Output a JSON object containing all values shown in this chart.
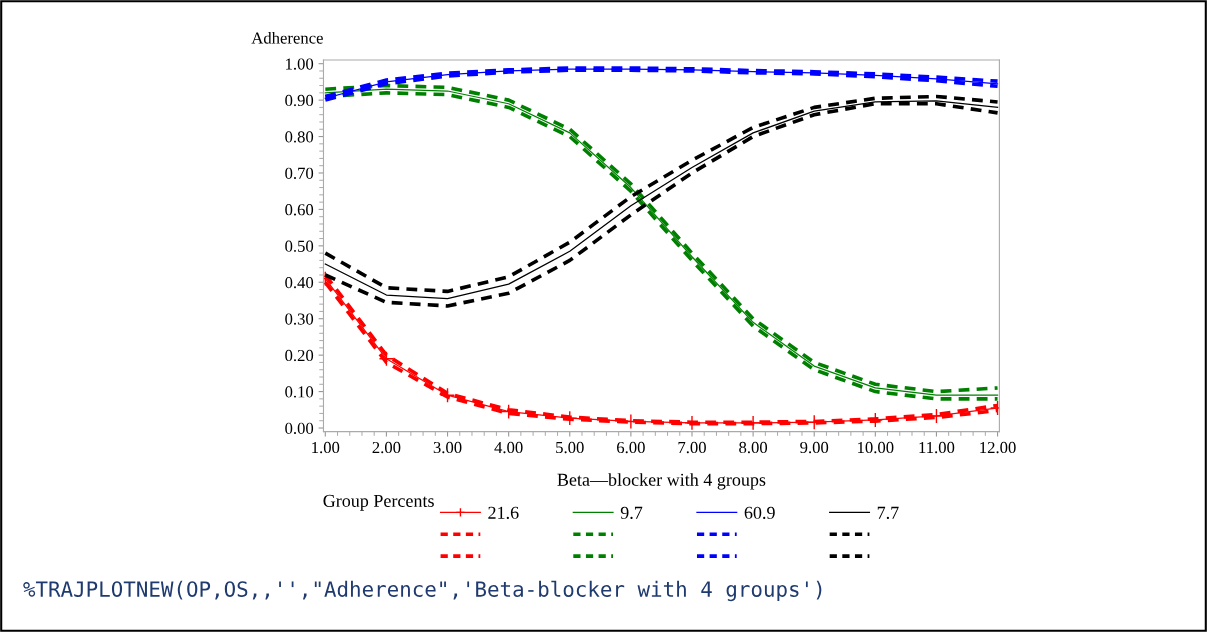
{
  "chart_data": {
    "type": "line",
    "ylabel": "Adherence",
    "xlabel": "Beta—blocker with 4 groups",
    "legend_title": "Group Percents",
    "x": [
      1,
      2,
      3,
      4,
      5,
      6,
      7,
      8,
      9,
      10,
      11,
      12
    ],
    "series": [
      {
        "name": "21.6",
        "color": "#ff0000",
        "marker": "cross",
        "line_style": "solid",
        "values": [
          0.41,
          0.19,
          0.09,
          0.045,
          0.027,
          0.018,
          0.014,
          0.014,
          0.016,
          0.022,
          0.033,
          0.055
        ]
      },
      {
        "color": "#ff0000",
        "line_style": "dashed",
        "values": [
          0.4,
          0.18,
          0.085,
          0.04,
          0.024,
          0.016,
          0.012,
          0.012,
          0.014,
          0.019,
          0.029,
          0.048
        ]
      },
      {
        "color": "#ff0000",
        "line_style": "dashed",
        "values": [
          0.42,
          0.2,
          0.095,
          0.05,
          0.03,
          0.02,
          0.016,
          0.016,
          0.018,
          0.025,
          0.037,
          0.062
        ]
      },
      {
        "name": "9.7",
        "color": "#008000",
        "line_style": "solid",
        "values": [
          0.92,
          0.93,
          0.925,
          0.89,
          0.81,
          0.66,
          0.47,
          0.29,
          0.17,
          0.11,
          0.09,
          0.09
        ]
      },
      {
        "color": "#008000",
        "line_style": "dashed",
        "values": [
          0.91,
          0.92,
          0.915,
          0.88,
          0.8,
          0.65,
          0.46,
          0.28,
          0.16,
          0.1,
          0.08,
          0.08
        ]
      },
      {
        "color": "#008000",
        "line_style": "dashed",
        "values": [
          0.93,
          0.94,
          0.935,
          0.9,
          0.82,
          0.67,
          0.48,
          0.3,
          0.18,
          0.12,
          0.1,
          0.11
        ]
      },
      {
        "name": "60.9",
        "color": "#0000ff",
        "line_style": "solid",
        "values": [
          0.905,
          0.95,
          0.97,
          0.98,
          0.985,
          0.985,
          0.983,
          0.978,
          0.975,
          0.968,
          0.958,
          0.945
        ]
      },
      {
        "color": "#0000ff",
        "line_style": "dashed",
        "values": [
          0.9,
          0.945,
          0.966,
          0.977,
          0.982,
          0.982,
          0.98,
          0.975,
          0.972,
          0.964,
          0.953,
          0.938
        ]
      },
      {
        "color": "#0000ff",
        "line_style": "dashed",
        "values": [
          0.91,
          0.955,
          0.974,
          0.983,
          0.988,
          0.988,
          0.986,
          0.981,
          0.978,
          0.972,
          0.963,
          0.952
        ]
      },
      {
        "name": "7.7",
        "color": "#000000",
        "line_style": "solid",
        "values": [
          0.45,
          0.365,
          0.355,
          0.395,
          0.485,
          0.61,
          0.715,
          0.81,
          0.87,
          0.895,
          0.898,
          0.88
        ]
      },
      {
        "color": "#000000",
        "line_style": "dashed",
        "values": [
          0.42,
          0.345,
          0.335,
          0.37,
          0.46,
          0.585,
          0.7,
          0.8,
          0.86,
          0.89,
          0.89,
          0.865
        ]
      },
      {
        "color": "#000000",
        "line_style": "dashed",
        "values": [
          0.48,
          0.385,
          0.375,
          0.415,
          0.51,
          0.635,
          0.735,
          0.825,
          0.88,
          0.905,
          0.91,
          0.895
        ]
      }
    ],
    "xlim": [
      0.97,
      12.03
    ],
    "xticks": [
      {
        "value": 1,
        "label": "1.00"
      },
      {
        "value": 2,
        "label": "2.00"
      },
      {
        "value": 3,
        "label": "3.00"
      },
      {
        "value": 4,
        "label": "4.00"
      },
      {
        "value": 5,
        "label": "5.00"
      },
      {
        "value": 6,
        "label": "6.00"
      },
      {
        "value": 7,
        "label": "7.00"
      },
      {
        "value": 8,
        "label": "8.00"
      },
      {
        "value": 9,
        "label": "9.00"
      },
      {
        "value": 10,
        "label": "10.00"
      },
      {
        "value": 11,
        "label": "11.00"
      },
      {
        "value": 12,
        "label": "12.00"
      }
    ],
    "ylim": [
      -0.01,
      1.01
    ],
    "yticks": [
      {
        "value": 0,
        "label": "0.00"
      },
      {
        "value": 0.1,
        "label": "0.10"
      },
      {
        "value": 0.2,
        "label": "0.20"
      },
      {
        "value": 0.3,
        "label": "0.30"
      },
      {
        "value": 0.4,
        "label": "0.40"
      },
      {
        "value": 0.5,
        "label": "0.50"
      },
      {
        "value": 0.6,
        "label": "0.60"
      },
      {
        "value": 0.7,
        "label": "0.70"
      },
      {
        "value": 0.8,
        "label": "0.80"
      },
      {
        "value": 0.9,
        "label": "0.90"
      },
      {
        "value": 1,
        "label": "1.00"
      }
    ],
    "grid": false,
    "legend": "bottom",
    "annotations": [
      "%TRAJPLOTNEW(OP,OS,,'',\"Adherence\",'Beta-blocker with 4 groups')"
    ]
  }
}
